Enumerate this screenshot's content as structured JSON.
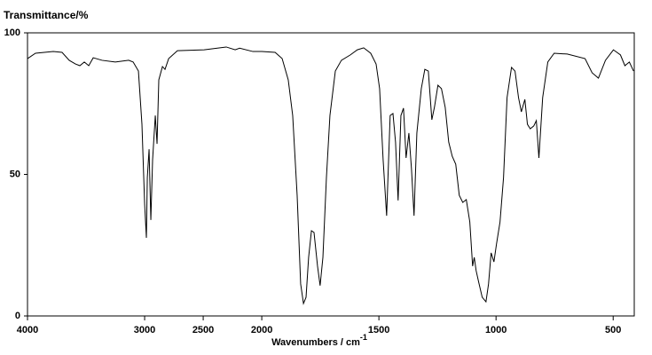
{
  "chart_data": {
    "type": "line",
    "title": "Transmittance/%",
    "xlabel": "Wavenumbers / cm",
    "xlabel_superscript": "-1",
    "x": [
      4000,
      3932,
      3780,
      3705,
      3644,
      3591,
      3553,
      3515,
      3477,
      3439,
      3364,
      3250,
      3136,
      3098,
      3053,
      3023,
      3000,
      2985,
      2977,
      2962,
      2947,
      2932,
      2909,
      2894,
      2879,
      2848,
      2826,
      2795,
      2720,
      2492,
      2303,
      2227,
      2189,
      2076,
      2000,
      1943,
      1913,
      1887,
      1868,
      1849,
      1834,
      1822,
      1811,
      1800,
      1788,
      1777,
      1762,
      1751,
      1739,
      1724,
      1709,
      1686,
      1660,
      1622,
      1592,
      1565,
      1535,
      1512,
      1497,
      1482,
      1467,
      1452,
      1440,
      1429,
      1418,
      1406,
      1395,
      1384,
      1372,
      1361,
      1350,
      1338,
      1319,
      1304,
      1289,
      1274,
      1263,
      1248,
      1233,
      1217,
      1202,
      1187,
      1172,
      1157,
      1142,
      1127,
      1112,
      1100,
      1093,
      1085,
      1074,
      1059,
      1043,
      1032,
      1021,
      1009,
      998,
      983,
      968,
      953,
      934,
      919,
      904,
      892,
      877,
      866,
      854,
      839,
      828,
      817,
      801,
      779,
      752,
      696,
      620,
      590,
      563,
      533,
      499,
      469,
      450,
      431,
      413
    ],
    "series": [
      {
        "color": "#000000",
        "values": [
          90.9,
          92.8,
          93.4,
          93.1,
          90.3,
          89.0,
          88.4,
          89.7,
          88.4,
          91.2,
          90.3,
          89.7,
          90.3,
          89.7,
          86.5,
          67.7,
          39.5,
          27.6,
          48.9,
          58.9,
          33.9,
          55.2,
          70.8,
          60.8,
          83.4,
          88.1,
          87.1,
          90.9,
          93.7,
          94.0,
          95.0,
          94.0,
          94.6,
          93.4,
          93.4,
          93.1,
          90.9,
          83.4,
          70.8,
          42.6,
          11.3,
          4.4,
          6.6,
          20.7,
          30.1,
          29.5,
          17.6,
          10.7,
          20.7,
          48.9,
          70.8,
          86.5,
          90.3,
          92.2,
          94.0,
          94.7,
          92.8,
          89.0,
          80.3,
          55.2,
          35.4,
          70.8,
          71.5,
          61.4,
          40.8,
          70.8,
          73.4,
          55.8,
          64.6,
          52.0,
          35.4,
          64.6,
          80.3,
          87.1,
          86.5,
          69.3,
          73.7,
          81.5,
          80.3,
          73.7,
          61.4,
          56.4,
          53.6,
          42.6,
          40.1,
          41.1,
          33.2,
          17.6,
          20.7,
          16.0,
          11.9,
          6.6,
          5.0,
          11.3,
          22.3,
          19.1,
          25.4,
          33.2,
          48.9,
          77.1,
          87.8,
          86.5,
          77.1,
          72.1,
          76.5,
          67.7,
          66.1,
          67.1,
          69.0,
          55.8,
          77.1,
          89.7,
          92.8,
          92.5,
          90.9,
          85.9,
          84.0,
          90.3,
          94.0,
          92.2,
          88.4,
          89.7,
          86.5
        ]
      }
    ],
    "xlim": [
      4000,
      410
    ],
    "xticks": [
      4000,
      3000,
      2500,
      2000,
      1500,
      1000,
      500
    ],
    "x_scale_break": {
      "at": 2000,
      "expansion": 2
    },
    "ylim": [
      0,
      100
    ],
    "yticks": [
      0,
      50,
      100
    ]
  }
}
